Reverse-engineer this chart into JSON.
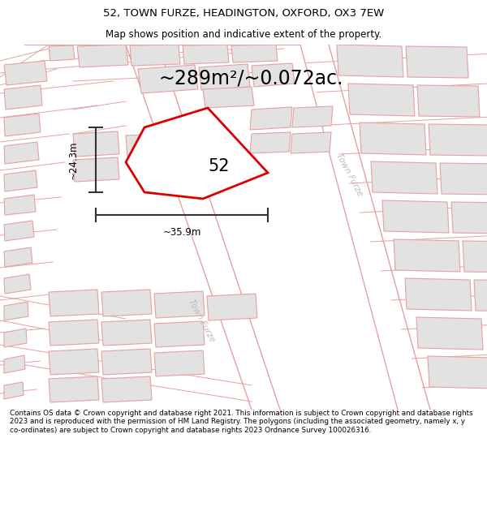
{
  "title_line1": "52, TOWN FURZE, HEADINGTON, OXFORD, OX3 7EW",
  "title_line2": "Map shows position and indicative extent of the property.",
  "area_text": "~289m²/~0.072ac.",
  "label_52": "52",
  "dim_width": "~35.9m",
  "dim_height": "~24.3m",
  "road_label1": "Town Furze",
  "road_label2": "Town Furze",
  "footer_text": "Contains OS data © Crown copyright and database right 2021. This information is subject to Crown copyright and database rights 2023 and is reproduced with the permission of HM Land Registry. The polygons (including the associated geometry, namely x, y co-ordinates) are subject to Crown copyright and database rights 2023 Ordnance Survey 100026316.",
  "bg_color": "#ffffff",
  "map_bg": "#f8f8f8",
  "plot_color": "#dd0000",
  "plot_fill": "#ffffff",
  "building_fill": "#e2e2e2",
  "building_stroke": "#e8a0a0",
  "road_color": "#e8a0a0",
  "dim_color": "#333333",
  "title_fontsize": 9.5,
  "subtitle_fontsize": 8.5,
  "area_fontsize": 17,
  "label_fontsize": 15,
  "footer_fontsize": 6.3,
  "road_lw": 0.7,
  "building_lw": 0.8
}
